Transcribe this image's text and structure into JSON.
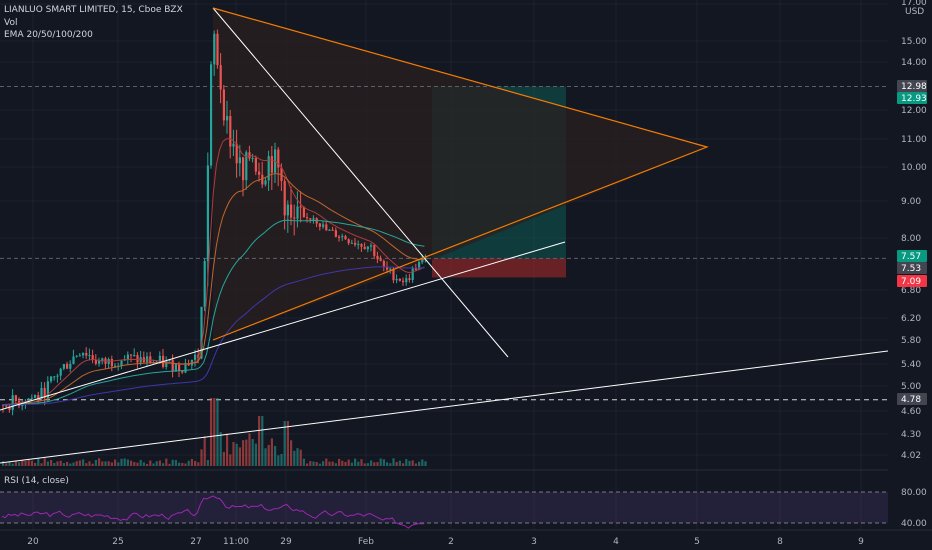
{
  "header": {
    "title": "LIANLUO SMART LIMITED, 15, Cboe BZX",
    "volume_label": "Vol",
    "ema_label": "EMA 20/50/100/200",
    "currency": "USD"
  },
  "rsi": {
    "label": "RSI (14, close)",
    "levels": [
      "80.00",
      "40.00"
    ]
  },
  "chart_data": {
    "type": "candlestick",
    "symbol": "LIANLUO SMART LIMITED",
    "interval": "15",
    "exchange": "Cboe BZX",
    "price_axis": {
      "ticks": [
        "17.00",
        "15.00",
        "14.00",
        "12.00",
        "11.00",
        "10.00",
        "9.00",
        "8.00",
        "6.80",
        "6.20",
        "5.80",
        "5.40",
        "5.00",
        "4.60",
        "4.30",
        "4.02"
      ]
    },
    "price_labels": [
      {
        "text": "12.98",
        "color": "#434651"
      },
      {
        "text": "12.93",
        "color": "#089981"
      },
      {
        "text": "7.57",
        "color": "#089981"
      },
      {
        "text": "7.53",
        "color": "#434651"
      },
      {
        "text": "7.09",
        "color": "#f23645"
      },
      {
        "text": "4.78",
        "color": "#434651"
      }
    ],
    "time_axis": [
      "20",
      "25",
      "27",
      "11:00",
      "29",
      "Feb",
      "2",
      "3",
      "4",
      "5",
      "8",
      "9"
    ],
    "levels": [
      12.98,
      7.53,
      4.78
    ],
    "price_range": [
      4.0,
      17.0
    ],
    "colors": {
      "up": "#26a69a",
      "down": "#ef5350",
      "rsi": "#9c27b0",
      "trend": "#ffffff",
      "triangle": "#f57c00"
    }
  }
}
